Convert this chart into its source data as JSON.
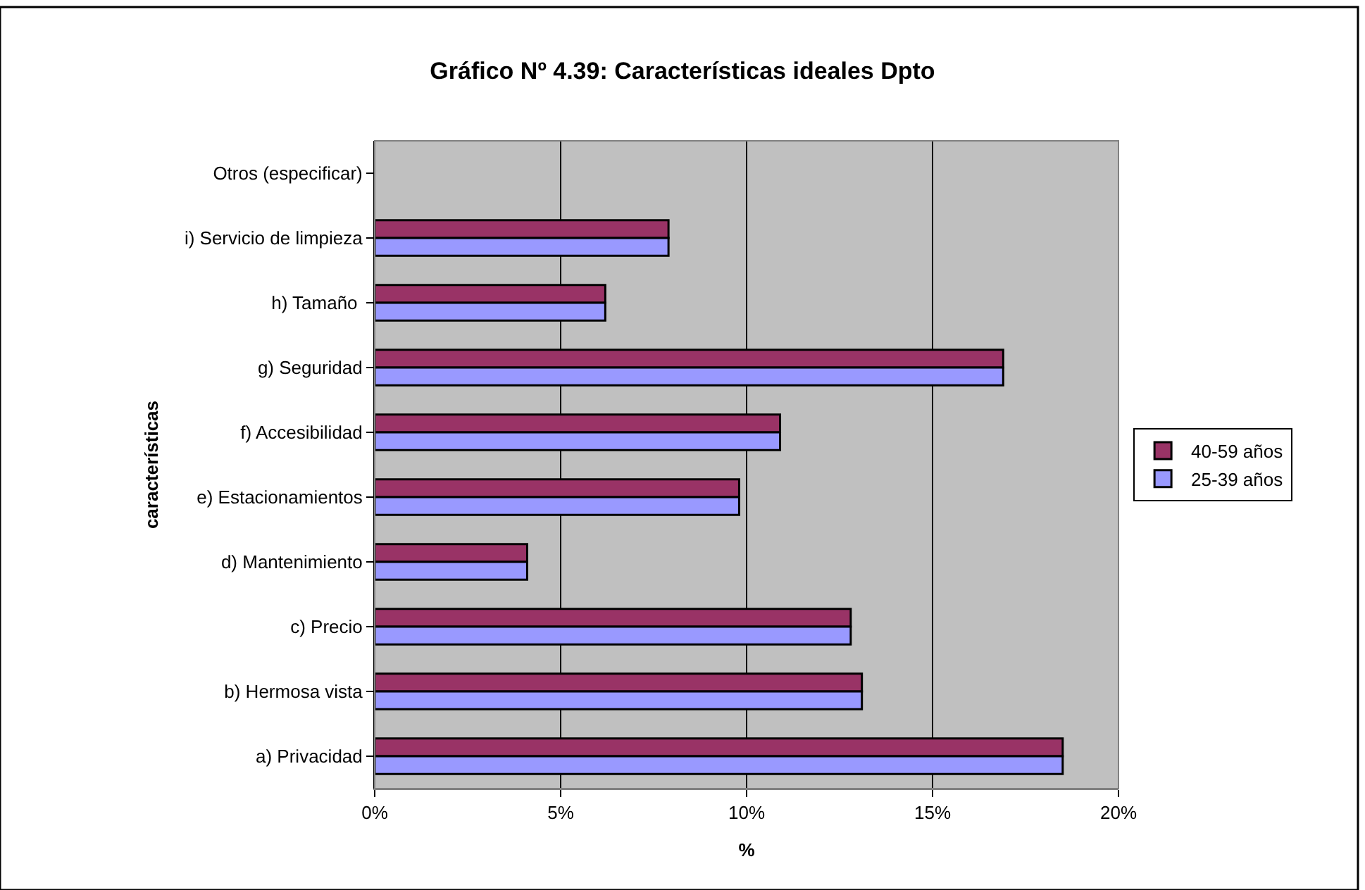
{
  "chart_data": {
    "type": "bar",
    "orientation": "horizontal",
    "title": "Gráfico Nº 4.39: Características ideales Dpto",
    "xlabel": "%",
    "ylabel": "características",
    "categories": [
      "Otros (especificar)",
      "i) Servicio de limpieza",
      "h) Tamaño ",
      "g) Seguridad",
      "f) Accesibilidad",
      "e) Estacionamientos",
      "d) Mantenimiento",
      "c) Precio",
      "b) Hermosa vista",
      "a) Privacidad"
    ],
    "series": [
      {
        "name": "40-59 años",
        "color": "#993366",
        "values": [
          null,
          7.9,
          6.2,
          16.9,
          10.9,
          9.8,
          4.1,
          12.8,
          13.1,
          18.5
        ]
      },
      {
        "name": "25-39 años",
        "color": "#9999ff",
        "values": [
          null,
          7.9,
          6.2,
          16.9,
          10.9,
          9.8,
          4.1,
          12.8,
          13.1,
          18.5
        ]
      }
    ],
    "xlim": [
      0,
      20
    ],
    "xticks": [
      {
        "value": 0,
        "label": "0%"
      },
      {
        "value": 5,
        "label": "5%"
      },
      {
        "value": 10,
        "label": "10%"
      },
      {
        "value": 15,
        "label": "15%"
      },
      {
        "value": 20,
        "label": "20%"
      }
    ],
    "grid": "x",
    "legend": "right"
  }
}
